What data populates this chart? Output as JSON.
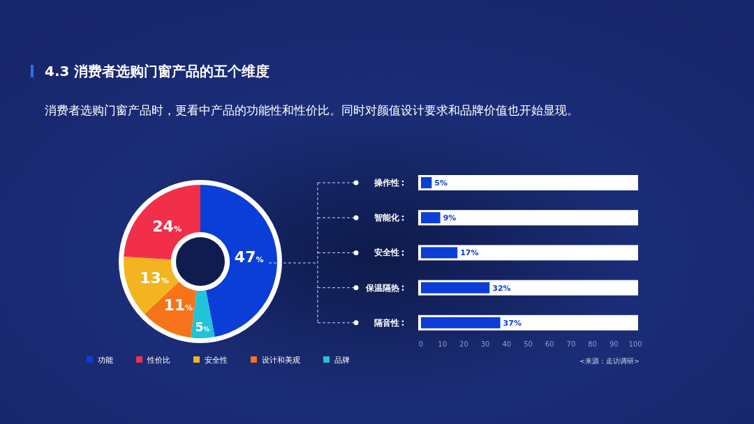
{
  "chart_data": [
    {
      "type": "donut",
      "title": "4.3 消费者选购门窗产品的五个维度",
      "subtitle": "消费者选购门窗产品时，更看中产品的功能性和性价比。同时对颜值设计要求和品牌价值也开始显现。",
      "categories": [
        "功能",
        "性价比",
        "安全性",
        "设计和美观",
        "品牌"
      ],
      "values": [
        47,
        24,
        13,
        11,
        5
      ],
      "colors": [
        "#0b3ed6",
        "#f22f4b",
        "#f3b51f",
        "#f7731a",
        "#20c3d8"
      ],
      "value_labels": [
        "47%",
        "24%",
        "13%",
        "11%",
        "5%"
      ],
      "legend": "bottom"
    },
    {
      "type": "bar",
      "orientation": "horizontal",
      "categories": [
        "操作性",
        "智能化",
        "安全性",
        "保温隔热",
        "隔音性"
      ],
      "value_labels": [
        "5%",
        "9%",
        "17%",
        "32%",
        "37%"
      ],
      "values": [
        5,
        9,
        17,
        32,
        37
      ],
      "color": "#0b3ed6",
      "xlim": [
        0,
        100
      ],
      "xticks": [
        0,
        10,
        20,
        30,
        40,
        50,
        60,
        70,
        80,
        90,
        100
      ],
      "annotations": [
        "<来源：走访调研>"
      ]
    }
  ]
}
